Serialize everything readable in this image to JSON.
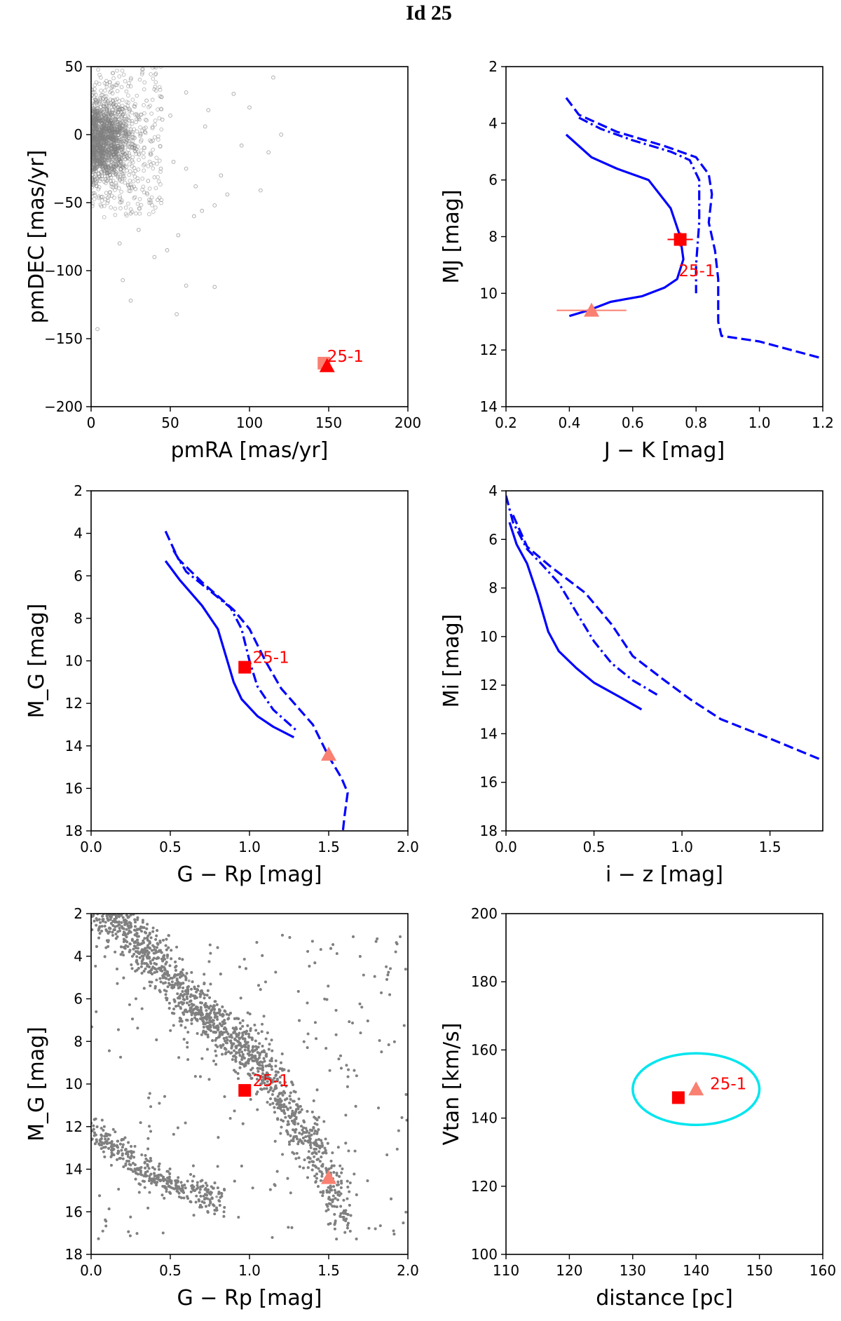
{
  "title": "Id 25",
  "colors": {
    "scatter": "#808080",
    "model": "#0000ff",
    "object_primary": "#ff0000",
    "object_secondary": "#fa8072",
    "ellipse": "#00e5ee"
  },
  "chart_data": [
    {
      "id": "proper-motion",
      "type": "scatter",
      "xlabel": "pmRA [mas/yr]",
      "ylabel": "pmDEC [mas/yr]",
      "xlim": [
        0,
        200
      ],
      "ylim": [
        -200,
        50
      ],
      "xticks": [
        0,
        50,
        100,
        150,
        200
      ],
      "yticks": [
        -200,
        -150,
        -100,
        -50,
        0,
        50
      ],
      "xticklabels": [
        "0",
        "50",
        "100",
        "150",
        "200"
      ],
      "yticklabels": [
        "−200",
        "−150",
        "−100",
        "−50",
        "0",
        "50"
      ],
      "background": {
        "description_points": "field stars proper motions",
        "center": [
          3,
          -5
        ],
        "spread": [
          11,
          16
        ],
        "count": 2600,
        "outliers": [
          [
            14,
            -13
          ],
          [
            34,
            2
          ],
          [
            38,
            -5
          ],
          [
            45,
            11
          ],
          [
            52,
            -20
          ],
          [
            60,
            -25
          ],
          [
            72,
            6
          ],
          [
            82,
            -30
          ],
          [
            70,
            -56
          ],
          [
            78,
            -52
          ],
          [
            95,
            -8
          ],
          [
            107,
            -41
          ],
          [
            112,
            -13
          ],
          [
            115,
            42
          ],
          [
            120,
            0
          ],
          [
            4,
            -143
          ],
          [
            20,
            -107
          ],
          [
            25,
            -122
          ],
          [
            60,
            -111
          ],
          [
            78,
            -112
          ],
          [
            54,
            -132
          ],
          [
            40,
            -90
          ],
          [
            30,
            -70
          ],
          [
            65,
            -60
          ],
          [
            90,
            30
          ],
          [
            100,
            20
          ],
          [
            42,
            -48
          ],
          [
            55,
            -74
          ],
          [
            35,
            25
          ],
          [
            28,
            -40
          ],
          [
            48,
            -85
          ],
          [
            66,
            -38
          ],
          [
            86,
            -44
          ],
          [
            50,
            14
          ],
          [
            60,
            31
          ],
          [
            25,
            -58
          ],
          [
            18,
            -80
          ],
          [
            44,
            -25
          ],
          [
            74,
            18
          ],
          [
            36,
            -34
          ]
        ]
      },
      "markers": [
        {
          "shape": "square",
          "color": "object_secondary",
          "x": 147,
          "y": -168
        },
        {
          "shape": "triangle",
          "color": "object_primary",
          "x": 149,
          "y": -170
        }
      ],
      "annotations": [
        {
          "text": "25-1",
          "x": 149,
          "y": -167
        }
      ]
    },
    {
      "id": "mj-vs-jk",
      "type": "line",
      "xlabel": "J − K [mag]",
      "ylabel": "MJ [mag]",
      "xlim": [
        0.2,
        1.2
      ],
      "ylim": [
        14,
        2
      ],
      "xticks": [
        0.2,
        0.4,
        0.6,
        0.8,
        1.0,
        1.2
      ],
      "yticks": [
        2,
        4,
        6,
        8,
        10,
        12,
        14
      ],
      "xticklabels": [
        "0.2",
        "0.4",
        "0.6",
        "0.8",
        "1.0",
        "1.2"
      ],
      "yticklabels": [
        "2",
        "4",
        "6",
        "8",
        "10",
        "12",
        "14"
      ],
      "series": [
        {
          "name": "solid",
          "style": "solid",
          "x": [
            0.39,
            0.47,
            0.55,
            0.65,
            0.72,
            0.75,
            0.76,
            0.74,
            0.7,
            0.63,
            0.53,
            0.46,
            0.4
          ],
          "y": [
            4.4,
            5.2,
            5.6,
            6.0,
            7.0,
            8.0,
            8.8,
            9.5,
            9.8,
            10.1,
            10.3,
            10.6,
            10.8
          ]
        },
        {
          "name": "dashdot",
          "style": "dashdot",
          "x": [
            0.43,
            0.5,
            0.6,
            0.72,
            0.78,
            0.81,
            0.81,
            0.8,
            0.8
          ],
          "y": [
            3.8,
            4.2,
            4.6,
            5.0,
            5.3,
            6.0,
            7.5,
            9.0,
            10.0
          ]
        },
        {
          "name": "dashed",
          "style": "dashed",
          "x": [
            0.39,
            0.43,
            0.55,
            0.7,
            0.8,
            0.84,
            0.85,
            0.84,
            0.86,
            0.87,
            0.87,
            0.88,
            1.0,
            1.1,
            1.2
          ],
          "y": [
            3.1,
            3.7,
            4.3,
            4.8,
            5.2,
            5.8,
            6.5,
            7.5,
            8.5,
            9.5,
            11.0,
            11.5,
            11.7,
            12.0,
            12.3
          ]
        }
      ],
      "markers": [
        {
          "shape": "square",
          "color": "object_primary",
          "x": 0.75,
          "y": 8.1,
          "xerr": 0.04,
          "yerr": 0.25
        },
        {
          "shape": "triangle",
          "color": "object_secondary",
          "x": 0.47,
          "y": 10.6,
          "xerr": 0.11,
          "yerr": 0.0
        }
      ],
      "annotations": [
        {
          "text": "25-1",
          "x": 0.745,
          "y": 9.4
        }
      ]
    },
    {
      "id": "mg-vs-grp",
      "type": "line",
      "xlabel": "G − Rp [mag]",
      "ylabel": "M_G [mag]",
      "xlim": [
        0.0,
        2.0
      ],
      "ylim": [
        18,
        2
      ],
      "xticks": [
        0.0,
        0.5,
        1.0,
        1.5,
        2.0
      ],
      "yticks": [
        2,
        4,
        6,
        8,
        10,
        12,
        14,
        16,
        18
      ],
      "xticklabels": [
        "0.0",
        "0.5",
        "1.0",
        "1.5",
        "2.0"
      ],
      "yticklabels": [
        "2",
        "4",
        "6",
        "8",
        "10",
        "12",
        "14",
        "16",
        "18"
      ],
      "series": [
        {
          "name": "solid",
          "style": "solid",
          "x": [
            0.47,
            0.56,
            0.7,
            0.8,
            0.86,
            0.9,
            0.95,
            1.05,
            1.15,
            1.28
          ],
          "y": [
            5.3,
            6.2,
            7.4,
            8.5,
            10.0,
            11.0,
            11.8,
            12.6,
            13.1,
            13.6
          ]
        },
        {
          "name": "dashdot",
          "style": "dashdot",
          "x": [
            0.52,
            0.6,
            0.75,
            0.88,
            0.95,
            1.0,
            1.05,
            1.15,
            1.3
          ],
          "y": [
            4.8,
            5.8,
            6.7,
            7.5,
            8.5,
            10.0,
            11.2,
            12.3,
            13.3
          ]
        },
        {
          "name": "dashed",
          "style": "dashed",
          "x": [
            0.47,
            0.55,
            0.7,
            0.9,
            1.0,
            1.1,
            1.2,
            1.4,
            1.5,
            1.58,
            1.62,
            1.6,
            1.59
          ],
          "y": [
            3.9,
            5.2,
            6.3,
            7.6,
            8.5,
            10.0,
            11.3,
            13.0,
            14.5,
            15.5,
            16.2,
            17.3,
            18.0
          ]
        }
      ],
      "markers": [
        {
          "shape": "square",
          "color": "object_primary",
          "x": 0.97,
          "y": 10.3
        },
        {
          "shape": "triangle",
          "color": "object_secondary",
          "x": 1.5,
          "y": 14.4
        }
      ],
      "annotations": [
        {
          "text": "25-1",
          "x": 1.02,
          "y": 10.1
        }
      ]
    },
    {
      "id": "mi-vs-iz",
      "type": "line",
      "xlabel": "i − z [mag]",
      "ylabel": "Mi [mag]",
      "xlim": [
        0.0,
        1.8
      ],
      "ylim": [
        18,
        4
      ],
      "xticks": [
        0.0,
        0.5,
        1.0,
        1.5
      ],
      "yticks": [
        4,
        6,
        8,
        10,
        12,
        14,
        16,
        18
      ],
      "xticklabels": [
        "0.0",
        "0.5",
        "1.0",
        "1.5"
      ],
      "yticklabels": [
        "4",
        "6",
        "8",
        "10",
        "12",
        "14",
        "16",
        "18"
      ],
      "series": [
        {
          "name": "solid",
          "style": "solid",
          "x": [
            0.02,
            0.06,
            0.12,
            0.18,
            0.24,
            0.3,
            0.4,
            0.5,
            0.65,
            0.77
          ],
          "y": [
            5.3,
            6.2,
            7.0,
            8.3,
            9.8,
            10.6,
            11.3,
            11.9,
            12.5,
            13.0
          ]
        },
        {
          "name": "dashdot",
          "style": "dashdot",
          "x": [
            0.0,
            0.04,
            0.12,
            0.2,
            0.3,
            0.4,
            0.5,
            0.6,
            0.72,
            0.86
          ],
          "y": [
            4.2,
            5.3,
            6.4,
            7.0,
            7.8,
            9.0,
            10.2,
            11.1,
            11.8,
            12.4
          ]
        },
        {
          "name": "dashed",
          "style": "dashed",
          "x": [
            0.04,
            0.12,
            0.25,
            0.45,
            0.6,
            0.72,
            0.9,
            1.05,
            1.22,
            1.5,
            1.8
          ],
          "y": [
            5.0,
            6.3,
            7.1,
            8.2,
            9.5,
            10.8,
            11.8,
            12.6,
            13.4,
            14.2,
            15.1
          ]
        }
      ],
      "markers": [],
      "annotations": []
    },
    {
      "id": "cmd-field",
      "type": "scatter",
      "xlabel": "G − Rp [mag]",
      "ylabel": "M_G [mag]",
      "xlim": [
        0.0,
        2.0
      ],
      "ylim": [
        18,
        2
      ],
      "xticks": [
        0.0,
        0.5,
        1.0,
        1.5,
        2.0
      ],
      "yticks": [
        2,
        4,
        6,
        8,
        10,
        12,
        14,
        16,
        18
      ],
      "xticklabels": [
        "0.0",
        "0.5",
        "1.0",
        "1.5",
        "2.0"
      ],
      "yticklabels": [
        "2",
        "4",
        "6",
        "8",
        "10",
        "12",
        "14",
        "16",
        "18"
      ],
      "background": {
        "main_sequence": [
          [
            0.05,
            1.8
          ],
          [
            0.25,
            3.0
          ],
          [
            0.45,
            4.6
          ],
          [
            0.6,
            6.0
          ],
          [
            0.8,
            7.2
          ],
          [
            1.0,
            8.5
          ],
          [
            1.15,
            10.0
          ],
          [
            1.3,
            11.8
          ],
          [
            1.42,
            13.2
          ],
          [
            1.52,
            14.8
          ],
          [
            1.58,
            16.2
          ]
        ],
        "white_dwarfs": [
          [
            0.0,
            12.0
          ],
          [
            0.2,
            13.3
          ],
          [
            0.4,
            14.3
          ],
          [
            0.6,
            15.0
          ],
          [
            0.8,
            15.4
          ]
        ],
        "count": 9000
      },
      "markers": [
        {
          "shape": "square",
          "color": "object_primary",
          "x": 0.97,
          "y": 10.3
        },
        {
          "shape": "triangle",
          "color": "object_secondary",
          "x": 1.5,
          "y": 14.4
        }
      ],
      "annotations": [
        {
          "text": "25-1",
          "x": 1.02,
          "y": 10.1
        }
      ]
    },
    {
      "id": "vtan-vs-distance",
      "type": "scatter",
      "xlabel": "distance [pc]",
      "ylabel": "Vtan [km/s]",
      "xlim": [
        110,
        160
      ],
      "ylim": [
        100,
        200
      ],
      "xticks": [
        110,
        120,
        130,
        140,
        150,
        160
      ],
      "yticks": [
        100,
        120,
        140,
        160,
        180,
        200
      ],
      "xticklabels": [
        "110",
        "120",
        "130",
        "140",
        "150",
        "160"
      ],
      "yticklabels": [
        "100",
        "120",
        "140",
        "160",
        "180",
        "200"
      ],
      "ellipse": {
        "cx": 140,
        "cy": 148.5,
        "rx": 10,
        "ry": 10.5
      },
      "markers": [
        {
          "shape": "square",
          "color": "object_primary",
          "x": 137.2,
          "y": 146.0
        },
        {
          "shape": "triangle",
          "color": "object_secondary",
          "x": 140.0,
          "y": 148.5
        }
      ],
      "annotations": [
        {
          "text": "25-1",
          "x": 142.2,
          "y": 148.5
        }
      ]
    }
  ]
}
